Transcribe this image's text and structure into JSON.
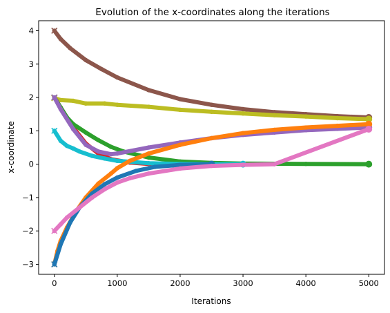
{
  "chart_data": {
    "type": "scatter",
    "title": "Evolution of the x-coordinates along the iterations",
    "xlabel": "Iterations",
    "ylabel": "x-coordinate",
    "xlim": [
      -250,
      5250
    ],
    "ylim": [
      -3.3,
      4.3
    ],
    "xticks": [
      0,
      1000,
      2000,
      3000,
      4000,
      5000
    ],
    "yticks": [
      -3,
      -2,
      -1,
      0,
      1,
      2,
      3,
      4
    ],
    "ytick_labels": [
      "−3",
      "−2",
      "−1",
      "0",
      "1",
      "2",
      "3",
      "4"
    ],
    "grid": false,
    "legend": false,
    "markers": {
      "start": "x",
      "end": "circle"
    },
    "series": [
      {
        "color": "#8c564b",
        "points": [
          [
            0,
            4.0
          ],
          [
            100,
            3.75
          ],
          [
            250,
            3.48
          ],
          [
            500,
            3.12
          ],
          [
            750,
            2.85
          ],
          [
            1000,
            2.6
          ],
          [
            1500,
            2.22
          ],
          [
            2000,
            1.95
          ],
          [
            2500,
            1.78
          ],
          [
            3000,
            1.65
          ],
          [
            3500,
            1.56
          ],
          [
            4000,
            1.5
          ],
          [
            4500,
            1.44
          ],
          [
            5000,
            1.4
          ]
        ]
      },
      {
        "color": "#bcbd22",
        "points": [
          [
            0,
            1.98
          ],
          [
            100,
            1.92
          ],
          [
            300,
            1.9
          ],
          [
            500,
            1.82
          ],
          [
            800,
            1.82
          ],
          [
            1000,
            1.78
          ],
          [
            1500,
            1.72
          ],
          [
            2000,
            1.63
          ],
          [
            2500,
            1.57
          ],
          [
            3000,
            1.52
          ],
          [
            3500,
            1.47
          ],
          [
            4000,
            1.43
          ],
          [
            4500,
            1.38
          ],
          [
            5000,
            1.35
          ]
        ]
      },
      {
        "color": "#d62728",
        "points": [
          [
            0,
            2.0
          ],
          [
            100,
            1.7
          ],
          [
            300,
            1.1
          ],
          [
            500,
            0.62
          ],
          [
            700,
            0.32
          ],
          [
            900,
            0.15
          ],
          [
            1200,
            0.05
          ],
          [
            1500,
            0.01
          ],
          [
            2000,
            0.0
          ],
          [
            2500,
            0.0
          ]
        ]
      },
      {
        "color": "#2ca02c",
        "points": [
          [
            0,
            2.0
          ],
          [
            100,
            1.7
          ],
          [
            200,
            1.4
          ],
          [
            300,
            1.2
          ],
          [
            500,
            0.95
          ],
          [
            700,
            0.72
          ],
          [
            900,
            0.52
          ],
          [
            1100,
            0.38
          ],
          [
            1500,
            0.2
          ],
          [
            2000,
            0.08
          ],
          [
            2500,
            0.04
          ],
          [
            3000,
            0.02
          ],
          [
            4000,
            0.01
          ],
          [
            5000,
            0.0
          ]
        ]
      },
      {
        "color": "#9467bd",
        "points": [
          [
            0,
            2.0
          ],
          [
            100,
            1.65
          ],
          [
            300,
            1.05
          ],
          [
            500,
            0.58
          ],
          [
            700,
            0.38
          ],
          [
            900,
            0.3
          ],
          [
            1000,
            0.32
          ],
          [
            1500,
            0.5
          ],
          [
            2000,
            0.65
          ],
          [
            2500,
            0.78
          ],
          [
            3000,
            0.88
          ],
          [
            3500,
            0.95
          ],
          [
            4000,
            1.02
          ],
          [
            4500,
            1.06
          ],
          [
            5000,
            1.1
          ]
        ]
      },
      {
        "color": "#17becf",
        "points": [
          [
            0,
            1.0
          ],
          [
            100,
            0.7
          ],
          [
            200,
            0.55
          ],
          [
            300,
            0.47
          ],
          [
            400,
            0.38
          ],
          [
            600,
            0.25
          ],
          [
            800,
            0.17
          ],
          [
            1000,
            0.1
          ],
          [
            1500,
            0.03
          ],
          [
            2000,
            0.01
          ],
          [
            2500,
            0.0
          ],
          [
            3000,
            0.0
          ]
        ]
      },
      {
        "color": "#ff7f0e",
        "points": [
          [
            0,
            -3.0
          ],
          [
            50,
            -2.6
          ],
          [
            100,
            -2.3
          ],
          [
            200,
            -1.9
          ],
          [
            350,
            -1.4
          ],
          [
            500,
            -1.0
          ],
          [
            700,
            -0.58
          ],
          [
            900,
            -0.28
          ],
          [
            1000,
            -0.12
          ],
          [
            1200,
            0.1
          ],
          [
            1500,
            0.32
          ],
          [
            2000,
            0.58
          ],
          [
            2500,
            0.78
          ],
          [
            3000,
            0.93
          ],
          [
            3500,
            1.03
          ],
          [
            4000,
            1.1
          ],
          [
            4500,
            1.15
          ],
          [
            5000,
            1.2
          ]
        ]
      },
      {
        "color": "#1f77b4",
        "points": [
          [
            0,
            -3.0
          ],
          [
            100,
            -2.4
          ],
          [
            250,
            -1.75
          ],
          [
            400,
            -1.3
          ],
          [
            600,
            -0.88
          ],
          [
            800,
            -0.6
          ],
          [
            1000,
            -0.4
          ],
          [
            1300,
            -0.2
          ],
          [
            1600,
            -0.08
          ],
          [
            2000,
            -0.02
          ],
          [
            2500,
            0.0
          ]
        ]
      },
      {
        "color": "#e377c2",
        "points": [
          [
            0,
            -2.0
          ],
          [
            100,
            -1.8
          ],
          [
            200,
            -1.6
          ],
          [
            400,
            -1.3
          ],
          [
            600,
            -1.0
          ],
          [
            800,
            -0.75
          ],
          [
            1000,
            -0.55
          ],
          [
            1200,
            -0.42
          ],
          [
            1500,
            -0.28
          ],
          [
            2000,
            -0.13
          ],
          [
            2500,
            -0.05
          ],
          [
            3000,
            -0.02
          ],
          [
            3500,
            0.0
          ],
          [
            5000,
            1.05
          ]
        ]
      }
    ]
  }
}
